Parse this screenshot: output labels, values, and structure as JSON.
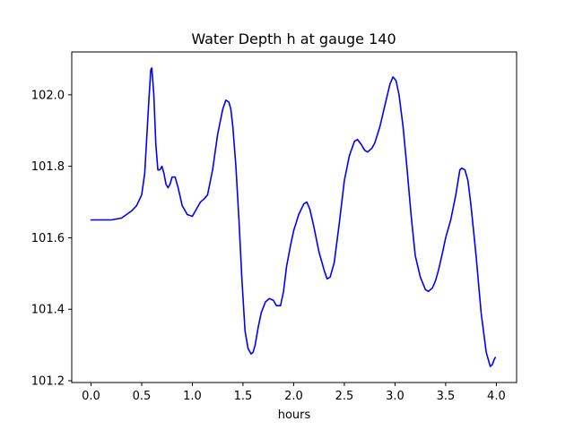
{
  "chart_data": {
    "type": "line",
    "title": "Water Depth h at gauge 140",
    "xlabel": "hours",
    "ylabel": "",
    "xlim": [
      -0.19,
      4.2
    ],
    "ylim": [
      101.195,
      102.12
    ],
    "xticks": [
      0.0,
      0.5,
      1.0,
      1.5,
      2.0,
      2.5,
      3.0,
      3.5,
      4.0
    ],
    "xtick_labels": [
      "0.0",
      "0.5",
      "1.0",
      "1.5",
      "2.0",
      "2.5",
      "3.0",
      "3.5",
      "4.0"
    ],
    "yticks": [
      101.2,
      101.4,
      101.6,
      101.8,
      102.0
    ],
    "ytick_labels": [
      "101.2",
      "101.4",
      "101.6",
      "101.8",
      "102.0"
    ],
    "grid": false,
    "series": [
      {
        "color": "#0000ff",
        "x": [
          0.0,
          0.1,
          0.2,
          0.3,
          0.4,
          0.45,
          0.5,
          0.53,
          0.55,
          0.57,
          0.59,
          0.6,
          0.62,
          0.64,
          0.66,
          0.68,
          0.7,
          0.72,
          0.74,
          0.76,
          0.78,
          0.8,
          0.83,
          0.86,
          0.9,
          0.95,
          1.0,
          1.05,
          1.08,
          1.12,
          1.15,
          1.2,
          1.25,
          1.3,
          1.33,
          1.36,
          1.38,
          1.4,
          1.43,
          1.46,
          1.49,
          1.52,
          1.55,
          1.58,
          1.6,
          1.62,
          1.65,
          1.68,
          1.72,
          1.76,
          1.8,
          1.83,
          1.87,
          1.9,
          1.93,
          1.97,
          2.0,
          2.05,
          2.1,
          2.13,
          2.16,
          2.2,
          2.25,
          2.3,
          2.33,
          2.36,
          2.4,
          2.45,
          2.5,
          2.55,
          2.6,
          2.63,
          2.67,
          2.7,
          2.73,
          2.77,
          2.8,
          2.85,
          2.9,
          2.95,
          2.98,
          3.01,
          3.04,
          3.08,
          3.12,
          3.16,
          3.2,
          3.25,
          3.3,
          3.33,
          3.37,
          3.4,
          3.43,
          3.47,
          3.5,
          3.55,
          3.6,
          3.64,
          3.66,
          3.69,
          3.72,
          3.75,
          3.8,
          3.85,
          3.9,
          3.94,
          3.96,
          3.98,
          3.99
        ],
        "y": [
          101.65,
          101.65,
          101.65,
          101.655,
          101.675,
          101.69,
          101.72,
          101.78,
          101.88,
          101.98,
          102.07,
          102.075,
          102.0,
          101.86,
          101.79,
          101.79,
          101.8,
          101.78,
          101.75,
          101.74,
          101.75,
          101.77,
          101.77,
          101.74,
          101.69,
          101.665,
          101.66,
          101.685,
          101.7,
          101.71,
          101.72,
          101.79,
          101.89,
          101.96,
          101.985,
          101.98,
          101.96,
          101.91,
          101.8,
          101.65,
          101.48,
          101.34,
          101.29,
          101.275,
          101.28,
          101.3,
          101.35,
          101.39,
          101.42,
          101.43,
          101.425,
          101.41,
          101.41,
          101.45,
          101.52,
          101.58,
          101.62,
          101.665,
          101.695,
          101.7,
          101.68,
          101.63,
          101.56,
          101.51,
          101.485,
          101.49,
          101.53,
          101.64,
          101.76,
          101.83,
          101.87,
          101.875,
          101.86,
          101.845,
          101.84,
          101.85,
          101.865,
          101.91,
          101.97,
          102.03,
          102.05,
          102.04,
          102.0,
          101.91,
          101.79,
          101.66,
          101.55,
          101.49,
          101.455,
          101.45,
          101.46,
          101.48,
          101.51,
          101.56,
          101.6,
          101.65,
          101.72,
          101.79,
          101.795,
          101.79,
          101.76,
          101.69,
          101.55,
          101.39,
          101.28,
          101.24,
          101.245,
          101.26,
          101.265
        ]
      }
    ]
  }
}
